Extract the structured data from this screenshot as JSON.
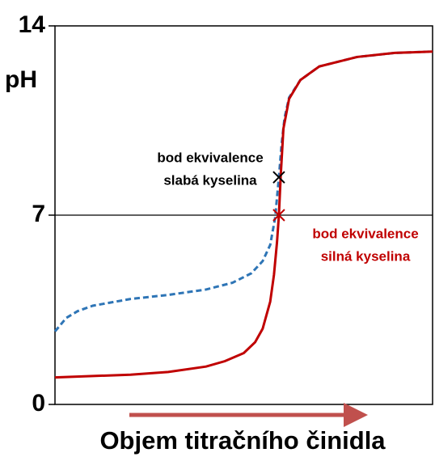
{
  "chart_data": {
    "type": "line",
    "ylabel": "pH",
    "xlabel": "Objem titračního činidla",
    "xlim": [
      0,
      100
    ],
    "ylim": [
      0,
      14
    ],
    "yticks": [
      0,
      7,
      14
    ],
    "reference_line": 7,
    "series": [
      {
        "name": "silná kyselina",
        "color": "#c00000",
        "dashed": false,
        "x": [
          0,
          10,
          20,
          30,
          40,
          45,
          50,
          53,
          55,
          57,
          58,
          58.8,
          59.3,
          59.8,
          60.5,
          62,
          65,
          70,
          80,
          90,
          100
        ],
        "values": [
          1.0,
          1.05,
          1.1,
          1.2,
          1.4,
          1.6,
          1.9,
          2.3,
          2.8,
          3.8,
          4.8,
          6.0,
          7.0,
          8.5,
          10.2,
          11.3,
          12.0,
          12.5,
          12.85,
          13.0,
          13.05
        ]
      },
      {
        "name": "slabá kyselina",
        "color": "#2e75b6",
        "dashed": true,
        "x": [
          0,
          3,
          6,
          10,
          20,
          30,
          40,
          47,
          52,
          55,
          57,
          58.3,
          59.3,
          60,
          60.8,
          62,
          65,
          70,
          80,
          90,
          100
        ],
        "values": [
          2.7,
          3.2,
          3.45,
          3.65,
          3.9,
          4.05,
          4.25,
          4.5,
          4.85,
          5.3,
          5.9,
          6.9,
          8.4,
          9.6,
          10.6,
          11.35,
          12.0,
          12.5,
          12.85,
          13.0,
          13.05
        ]
      }
    ],
    "annotations": [
      {
        "lines": [
          "bod ekvivalence",
          "slabá kyselina"
        ],
        "x": 59.3,
        "y": 8.4,
        "color": "#000000"
      },
      {
        "lines": [
          "bod ekvivalence",
          "silná kyselina"
        ],
        "x": 59.3,
        "y": 7,
        "color": "#c00000"
      }
    ]
  }
}
